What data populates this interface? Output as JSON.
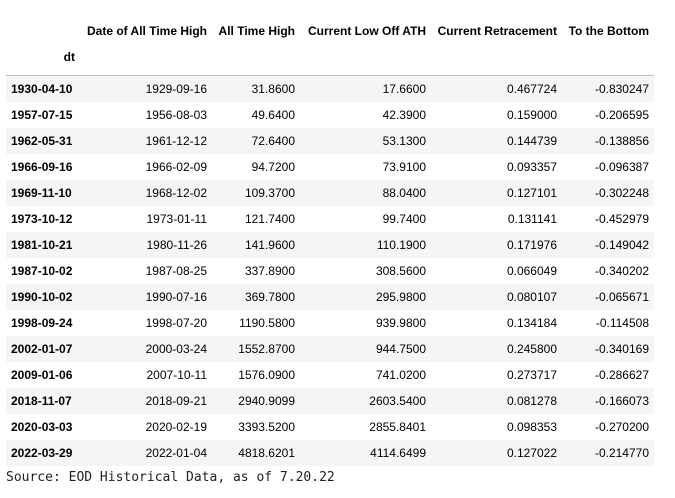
{
  "table": {
    "columns": [
      "Date of All Time High",
      "All Time High",
      "Current Low Off ATH",
      "Current Retracement",
      "To the Bottom"
    ],
    "index_name": "dt",
    "rows": [
      {
        "dt": "1930-04-10",
        "cells": [
          "1929-09-16",
          "31.8600",
          "17.6600",
          "0.467724",
          "-0.830247"
        ]
      },
      {
        "dt": "1957-07-15",
        "cells": [
          "1956-08-03",
          "49.6400",
          "42.3900",
          "0.159000",
          "-0.206595"
        ]
      },
      {
        "dt": "1962-05-31",
        "cells": [
          "1961-12-12",
          "72.6400",
          "53.1300",
          "0.144739",
          "-0.138856"
        ]
      },
      {
        "dt": "1966-09-16",
        "cells": [
          "1966-02-09",
          "94.7200",
          "73.9100",
          "0.093357",
          "-0.096387"
        ]
      },
      {
        "dt": "1969-11-10",
        "cells": [
          "1968-12-02",
          "109.3700",
          "88.0400",
          "0.127101",
          "-0.302248"
        ]
      },
      {
        "dt": "1973-10-12",
        "cells": [
          "1973-01-11",
          "121.7400",
          "99.7400",
          "0.131141",
          "-0.452979"
        ]
      },
      {
        "dt": "1981-10-21",
        "cells": [
          "1980-11-26",
          "141.9600",
          "110.1900",
          "0.171976",
          "-0.149042"
        ]
      },
      {
        "dt": "1987-10-02",
        "cells": [
          "1987-08-25",
          "337.8900",
          "308.5600",
          "0.066049",
          "-0.340202"
        ]
      },
      {
        "dt": "1990-10-02",
        "cells": [
          "1990-07-16",
          "369.7800",
          "295.9800",
          "0.080107",
          "-0.065671"
        ]
      },
      {
        "dt": "1998-09-24",
        "cells": [
          "1998-07-20",
          "1190.5800",
          "939.9800",
          "0.134184",
          "-0.114508"
        ]
      },
      {
        "dt": "2002-01-07",
        "cells": [
          "2000-03-24",
          "1552.8700",
          "944.7500",
          "0.245800",
          "-0.340169"
        ]
      },
      {
        "dt": "2009-01-06",
        "cells": [
          "2007-10-11",
          "1576.0900",
          "741.0200",
          "0.273717",
          "-0.286627"
        ]
      },
      {
        "dt": "2018-11-07",
        "cells": [
          "2018-09-21",
          "2940.9099",
          "2603.5400",
          "0.081278",
          "-0.166073"
        ]
      },
      {
        "dt": "2020-03-03",
        "cells": [
          "2020-02-19",
          "3393.5200",
          "2855.8401",
          "0.098353",
          "-0.270200"
        ]
      },
      {
        "dt": "2022-03-29",
        "cells": [
          "2022-01-04",
          "4818.6201",
          "4114.6499",
          "0.127022",
          "-0.214770"
        ]
      }
    ]
  },
  "source_note": "Source: EOD Historical Data, as of 7.20.22"
}
